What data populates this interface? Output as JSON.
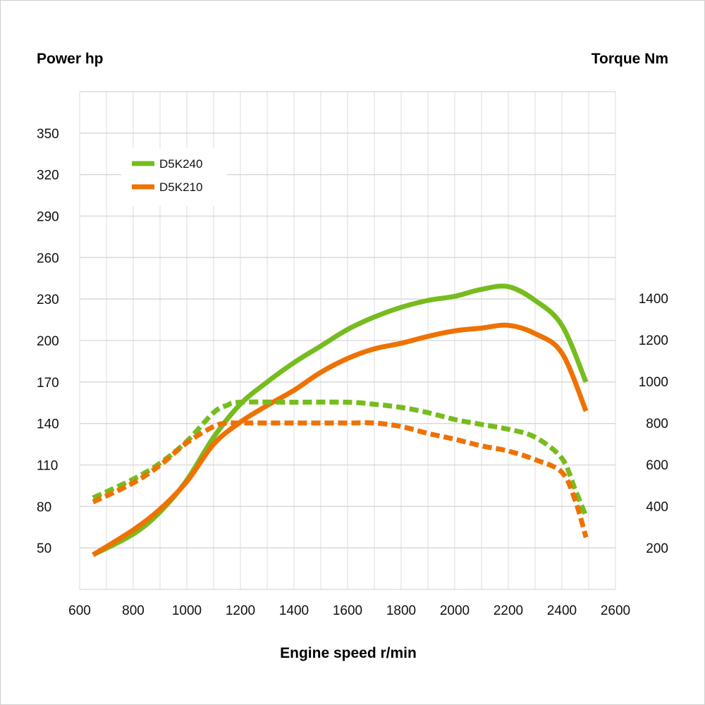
{
  "chart_data": {
    "type": "line",
    "left_axis_title": "Power hp",
    "right_axis_title": "Torque Nm",
    "xlabel": "Engine speed r/min",
    "xlim": [
      600,
      2600
    ],
    "x_ticks": [
      600,
      800,
      1000,
      1200,
      1400,
      1600,
      1800,
      2000,
      2200,
      2400,
      2600
    ],
    "ylim_left": [
      20,
      380
    ],
    "y_ticks_left": [
      50,
      80,
      110,
      140,
      170,
      200,
      230,
      260,
      290,
      320,
      350
    ],
    "ylim_right": [
      0,
      1400
    ],
    "y_ticks_right": [
      200,
      400,
      600,
      800,
      1000,
      1200,
      1400
    ],
    "grid": true,
    "legend": [
      {
        "name": "D5K240",
        "color": "#77bc1f"
      },
      {
        "name": "D5K210",
        "color": "#ee7203"
      }
    ],
    "series": [
      {
        "name": "D5K240",
        "quantity": "power",
        "axis": "left",
        "style": "solid",
        "color": "#77bc1f",
        "x": [
          650,
          800,
          900,
          1000,
          1100,
          1200,
          1300,
          1400,
          1500,
          1600,
          1700,
          1800,
          1900,
          2000,
          2100,
          2200,
          2300,
          2400,
          2490
        ],
        "y": [
          45,
          60,
          76,
          99,
          130,
          154,
          170,
          184,
          196,
          208,
          217,
          224,
          229,
          232,
          237,
          239,
          229,
          211,
          170
        ]
      },
      {
        "name": "D5K210",
        "quantity": "power",
        "axis": "left",
        "style": "solid",
        "color": "#ee7203",
        "x": [
          650,
          800,
          900,
          1000,
          1100,
          1200,
          1300,
          1400,
          1500,
          1600,
          1700,
          1800,
          1900,
          2000,
          2100,
          2200,
          2300,
          2400,
          2490
        ],
        "y": [
          45,
          63,
          78,
          98,
          125,
          141,
          153,
          164,
          177,
          187,
          194,
          198,
          203,
          207,
          209,
          211,
          205,
          191,
          149
        ]
      },
      {
        "name": "D5K240",
        "quantity": "torque",
        "axis": "right",
        "style": "dashed",
        "color": "#77bc1f",
        "x": [
          650,
          800,
          900,
          1000,
          1100,
          1150,
          1200,
          1400,
          1600,
          1700,
          1800,
          1900,
          2000,
          2100,
          2200,
          2300,
          2400,
          2450,
          2490
        ],
        "y": [
          440,
          530,
          607,
          712,
          850,
          885,
          900,
          900,
          900,
          890,
          875,
          850,
          817,
          793,
          770,
          732,
          630,
          478,
          352
        ]
      },
      {
        "name": "D5K210",
        "quantity": "torque",
        "axis": "right",
        "style": "dashed",
        "color": "#ee7203",
        "x": [
          650,
          800,
          900,
          1000,
          1100,
          1150,
          1200,
          1400,
          1600,
          1700,
          1800,
          1900,
          2000,
          2100,
          2200,
          2300,
          2400,
          2450,
          2490
        ],
        "y": [
          420,
          512,
          597,
          705,
          783,
          800,
          800,
          800,
          800,
          800,
          783,
          750,
          722,
          690,
          665,
          624,
          563,
          427,
          250
        ]
      }
    ]
  }
}
